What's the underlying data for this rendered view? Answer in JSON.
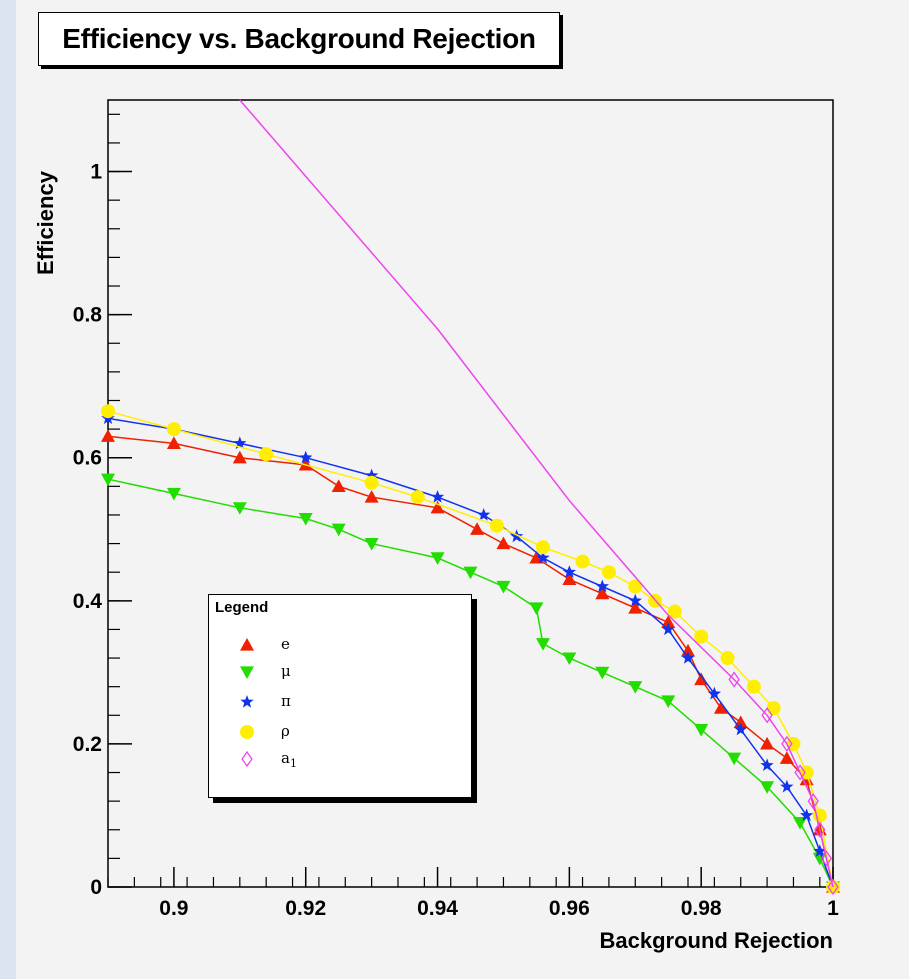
{
  "chart_data": {
    "type": "line",
    "title": "Efficiency vs. Background Rejection",
    "xlabel": "Background Rejection",
    "ylabel": "Efficiency",
    "xlim": [
      0.89,
      1.0
    ],
    "ylim": [
      0,
      1.1
    ],
    "x_ticks": [
      0.9,
      0.92,
      0.94,
      0.96,
      0.98,
      1
    ],
    "x_tick_labels": [
      "0.9",
      "0.92",
      "0.94",
      "0.96",
      "0.98",
      "1"
    ],
    "y_ticks": [
      0,
      0.2,
      0.4,
      0.6,
      0.8,
      1
    ],
    "y_tick_labels": [
      "0",
      "0.2",
      "0.4",
      "0.6",
      "0.8",
      "1"
    ],
    "grid": false,
    "legend": {
      "title": "Legend",
      "placement": "lower-left"
    },
    "series": [
      {
        "name": "e",
        "color": "#ee2200",
        "marker": "triangle-up",
        "x": [
          0.89,
          0.9,
          0.91,
          0.92,
          0.925,
          0.93,
          0.94,
          0.946,
          0.95,
          0.955,
          0.96,
          0.965,
          0.97,
          0.975,
          0.978,
          0.98,
          0.983,
          0.986,
          0.99,
          0.993,
          0.996,
          0.998,
          1.0
        ],
        "y": [
          0.63,
          0.62,
          0.6,
          0.59,
          0.56,
          0.545,
          0.53,
          0.5,
          0.48,
          0.46,
          0.43,
          0.41,
          0.39,
          0.37,
          0.33,
          0.29,
          0.25,
          0.23,
          0.2,
          0.18,
          0.15,
          0.08,
          0.0
        ]
      },
      {
        "name": "μ",
        "color": "#22dd00",
        "marker": "triangle-down",
        "x": [
          0.89,
          0.9,
          0.91,
          0.92,
          0.925,
          0.93,
          0.94,
          0.945,
          0.95,
          0.955,
          0.956,
          0.96,
          0.965,
          0.97,
          0.975,
          0.98,
          0.985,
          0.99,
          0.995,
          0.998,
          1.0
        ],
        "y": [
          0.57,
          0.55,
          0.53,
          0.515,
          0.5,
          0.48,
          0.46,
          0.44,
          0.42,
          0.39,
          0.34,
          0.32,
          0.3,
          0.28,
          0.26,
          0.22,
          0.18,
          0.14,
          0.09,
          0.04,
          0.0
        ]
      },
      {
        "name": "π",
        "color": "#1133ee",
        "marker": "star",
        "x": [
          0.89,
          0.9,
          0.91,
          0.92,
          0.93,
          0.94,
          0.947,
          0.952,
          0.956,
          0.96,
          0.965,
          0.97,
          0.975,
          0.978,
          0.982,
          0.986,
          0.99,
          0.993,
          0.996,
          0.998,
          1.0
        ],
        "y": [
          0.655,
          0.64,
          0.62,
          0.6,
          0.575,
          0.545,
          0.52,
          0.49,
          0.46,
          0.44,
          0.42,
          0.4,
          0.36,
          0.32,
          0.27,
          0.22,
          0.17,
          0.14,
          0.1,
          0.05,
          0.0
        ]
      },
      {
        "name": "ρ",
        "color": "#ffee00",
        "marker": "circle",
        "x": [
          0.89,
          0.9,
          0.914,
          0.93,
          0.937,
          0.949,
          0.956,
          0.962,
          0.966,
          0.97,
          0.973,
          0.976,
          0.98,
          0.984,
          0.988,
          0.991,
          0.994,
          0.996,
          0.998,
          1.0
        ],
        "y": [
          0.665,
          0.64,
          0.605,
          0.565,
          0.545,
          0.505,
          0.475,
          0.455,
          0.44,
          0.42,
          0.4,
          0.385,
          0.35,
          0.32,
          0.28,
          0.25,
          0.2,
          0.16,
          0.1,
          0.0
        ]
      },
      {
        "name": "a1",
        "color": "#ee44ee",
        "marker": "diamond-open",
        "x": [
          0.91,
          0.94,
          0.96,
          0.975,
          0.985,
          0.99,
          0.993,
          0.995,
          0.997,
          0.998,
          0.999,
          1.0
        ],
        "y": [
          1.1,
          0.78,
          0.54,
          0.38,
          0.29,
          0.24,
          0.2,
          0.16,
          0.12,
          0.08,
          0.04,
          0.0
        ]
      }
    ]
  },
  "legend_items": [
    {
      "label": "e"
    },
    {
      "label": "μ"
    },
    {
      "label": "π"
    },
    {
      "label": "ρ"
    },
    {
      "label": "a",
      "sub": "1"
    }
  ]
}
